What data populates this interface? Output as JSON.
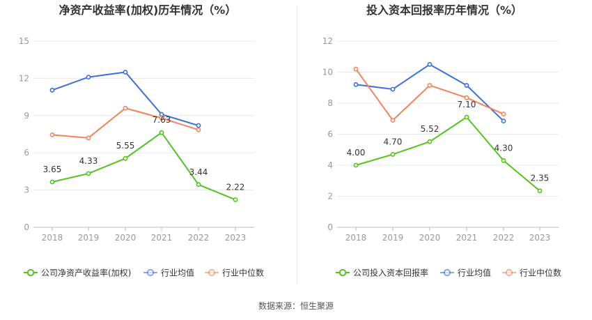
{
  "source": "数据来源：恒生聚源",
  "colors": {
    "company": "#52c41a",
    "avg": "#3a6fe0",
    "median": "#f5825a",
    "grid": "#e8e8e8",
    "axis": "#bbbbbb",
    "tick": "#999999"
  },
  "chart_data": [
    {
      "type": "line",
      "title": "净资产收益率(加权)历年情况（%）",
      "categories": [
        "2018",
        "2019",
        "2020",
        "2021",
        "2022",
        "2023"
      ],
      "ylim": [
        0,
        15
      ],
      "yticks": [
        "0",
        "3",
        "6",
        "9",
        "12",
        "15"
      ],
      "grid": true,
      "legend_position": "bottom",
      "series": [
        {
          "name": "公司净资产收益率(加权)",
          "key": "company",
          "values": [
            3.65,
            4.33,
            5.55,
            7.63,
            3.44,
            2.22
          ],
          "labels": [
            "3.65",
            "4.33",
            "5.55",
            "7.63",
            "3.44",
            "2.22"
          ]
        },
        {
          "name": "行业均值",
          "key": "avg",
          "values": [
            11.05,
            12.1,
            12.5,
            9.1,
            8.2,
            null
          ]
        },
        {
          "name": "行业中位数",
          "key": "median",
          "values": [
            7.45,
            7.2,
            9.6,
            8.8,
            7.85,
            null
          ]
        }
      ]
    },
    {
      "type": "line",
      "title": "投入资本回报率历年情况（%）",
      "categories": [
        "2018",
        "2019",
        "2020",
        "2021",
        "2022",
        "2023"
      ],
      "ylim": [
        0,
        12
      ],
      "yticks": [
        "0",
        "2",
        "4",
        "6",
        "8",
        "10",
        "12"
      ],
      "grid": true,
      "legend_position": "bottom",
      "series": [
        {
          "name": "公司投入资本回报率",
          "key": "company",
          "values": [
            4.0,
            4.7,
            5.52,
            7.1,
            4.3,
            2.35
          ],
          "labels": [
            "4.00",
            "4.70",
            "5.52",
            "7.10",
            "4.30",
            "2.35"
          ]
        },
        {
          "name": "行业均值",
          "key": "avg",
          "values": [
            9.2,
            8.9,
            10.5,
            9.15,
            6.85,
            null
          ]
        },
        {
          "name": "行业中位数",
          "key": "median",
          "values": [
            10.2,
            6.9,
            9.15,
            8.35,
            7.3,
            null
          ]
        }
      ]
    }
  ]
}
